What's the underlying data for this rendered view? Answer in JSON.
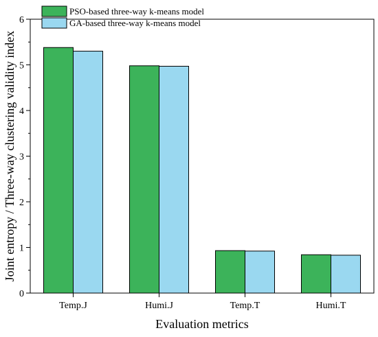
{
  "chart_data": {
    "type": "bar",
    "xlabel": "Evaluation metrics",
    "ylabel": "Joint entropy / Three-way clustering validity index",
    "categories": [
      "Temp.J",
      "Humi.J",
      "Temp.T",
      "Humi.T"
    ],
    "ylim": [
      0,
      6
    ],
    "yticks": [
      "0",
      "1",
      "2",
      "3",
      "4",
      "5",
      "6"
    ],
    "series": [
      {
        "name": "PSO-based three-way k-means model",
        "color": "#3cb35a",
        "values": [
          5.38,
          4.98,
          0.93,
          0.84
        ]
      },
      {
        "name": "GA-based three-way k-means model",
        "color": "#9ad8f0",
        "values": [
          5.3,
          4.97,
          0.92,
          0.83
        ]
      }
    ],
    "legend_position": "top-left",
    "grid": false
  }
}
